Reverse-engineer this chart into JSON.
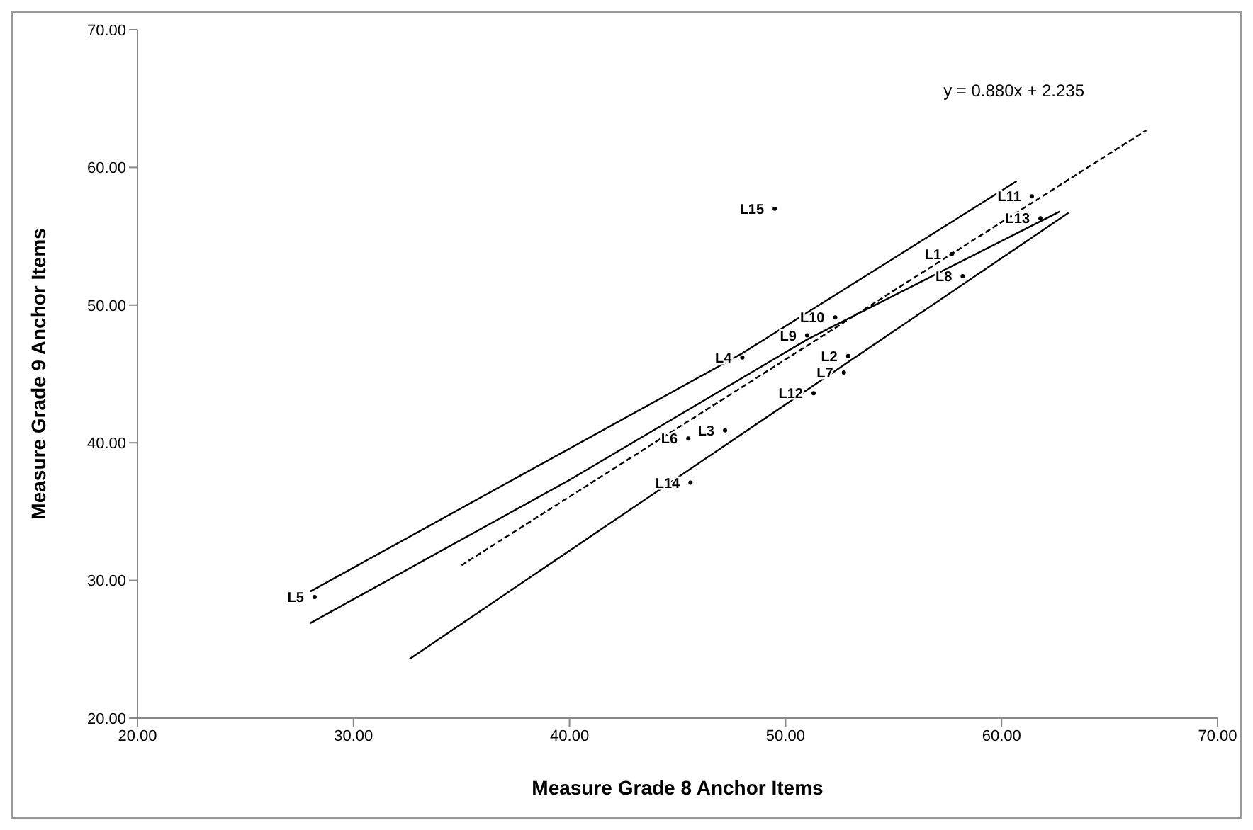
{
  "chart_data": {
    "type": "scatter",
    "xlabel": "Measure Grade 8 Anchor  Items",
    "ylabel": "Measure Grade 9 Anchor Items",
    "xlim": [
      20,
      70
    ],
    "ylim": [
      20,
      70
    ],
    "xticks": [
      {
        "value": 20,
        "label": "20.00"
      },
      {
        "value": 30,
        "label": "30.00"
      },
      {
        "value": 40,
        "label": "40.00"
      },
      {
        "value": 50,
        "label": "50.00"
      },
      {
        "value": 60,
        "label": "60.00"
      },
      {
        "value": 70,
        "label": "70.00"
      }
    ],
    "yticks": [
      {
        "value": 20,
        "label": "20.00"
      },
      {
        "value": 30,
        "label": "30.00"
      },
      {
        "value": 40,
        "label": "40.00"
      },
      {
        "value": 50,
        "label": "50.00"
      },
      {
        "value": 60,
        "label": "60.00"
      },
      {
        "value": 70,
        "label": "70.00"
      }
    ],
    "grid": false,
    "legend": false,
    "annotations": [
      "y = 0.880x + 2.235"
    ],
    "series": [
      {
        "color": "#000000",
        "marker": "circle",
        "x": [
          57.7,
          52.9,
          47.2,
          48.0,
          28.2,
          45.5,
          52.7,
          58.2,
          51.0,
          52.3,
          61.4,
          51.3,
          61.8,
          45.6,
          49.5
        ],
        "values": [
          53.7,
          46.3,
          40.9,
          46.2,
          28.8,
          40.3,
          45.1,
          52.1,
          47.8,
          49.1,
          57.9,
          43.6,
          56.3,
          37.1,
          57.0
        ],
        "value_labels": [
          "L1",
          "L2",
          "L3",
          "L4",
          "L5",
          "L6",
          "L7",
          "L8",
          "L9",
          "L10",
          "L11",
          "L12",
          "L13",
          "L14",
          "L15"
        ]
      },
      {
        "type": "line",
        "color": "#000000",
        "line_style": "solid",
        "x": [
          28.0,
          48.0,
          60.7
        ],
        "values": [
          29.2,
          46.5,
          59.0
        ]
      },
      {
        "type": "line",
        "color": "#000000",
        "line_style": "solid",
        "x": [
          28.0,
          40.0,
          51.0,
          62.7
        ],
        "values": [
          26.9,
          37.3,
          47.5,
          56.8
        ]
      },
      {
        "type": "line",
        "color": "#000000",
        "line_style": "solid",
        "x": [
          32.6,
          63.1
        ],
        "values": [
          24.3,
          56.7
        ]
      },
      {
        "type": "line",
        "color": "#000000",
        "line_style": "dashed",
        "x": [
          35.0,
          66.7
        ],
        "values": [
          31.1,
          62.7
        ]
      }
    ]
  }
}
